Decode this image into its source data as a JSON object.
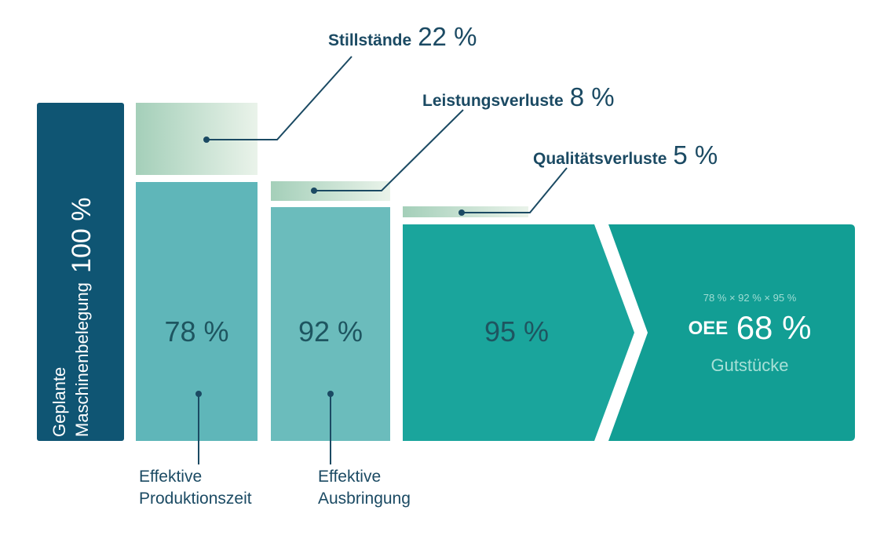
{
  "planned": {
    "line1": "Geplante",
    "line2": "Maschinenbelegung",
    "value": "100 %"
  },
  "losses": [
    {
      "name": "Stillstände",
      "value": "22 %"
    },
    {
      "name": "Leistungsverluste",
      "value": "8 %"
    },
    {
      "name": "Qualitätsverluste",
      "value": "5 %"
    }
  ],
  "stages": [
    {
      "value": "78 %"
    },
    {
      "value": "92 %"
    },
    {
      "value": "95 %"
    }
  ],
  "result": {
    "formula": "78 % × 92 % × 95 %",
    "label": "OEE",
    "value": "68 %",
    "sub": "Gutstücke"
  },
  "bottom_labels": [
    {
      "line1": "Effektive",
      "line2": "Produktionszeit"
    },
    {
      "line1": "Effektive",
      "line2": "Ausbringung"
    }
  ],
  "colors": {
    "planned": "#0f5573",
    "stage1": "#5fb6b9",
    "stage2": "#6bbcbc",
    "stage3": "#1aa59c",
    "result": "#129e94",
    "loss_light": "#e6f0e6",
    "loss_dark": "#a4cfb9",
    "text_dark": "#1b4a63"
  }
}
